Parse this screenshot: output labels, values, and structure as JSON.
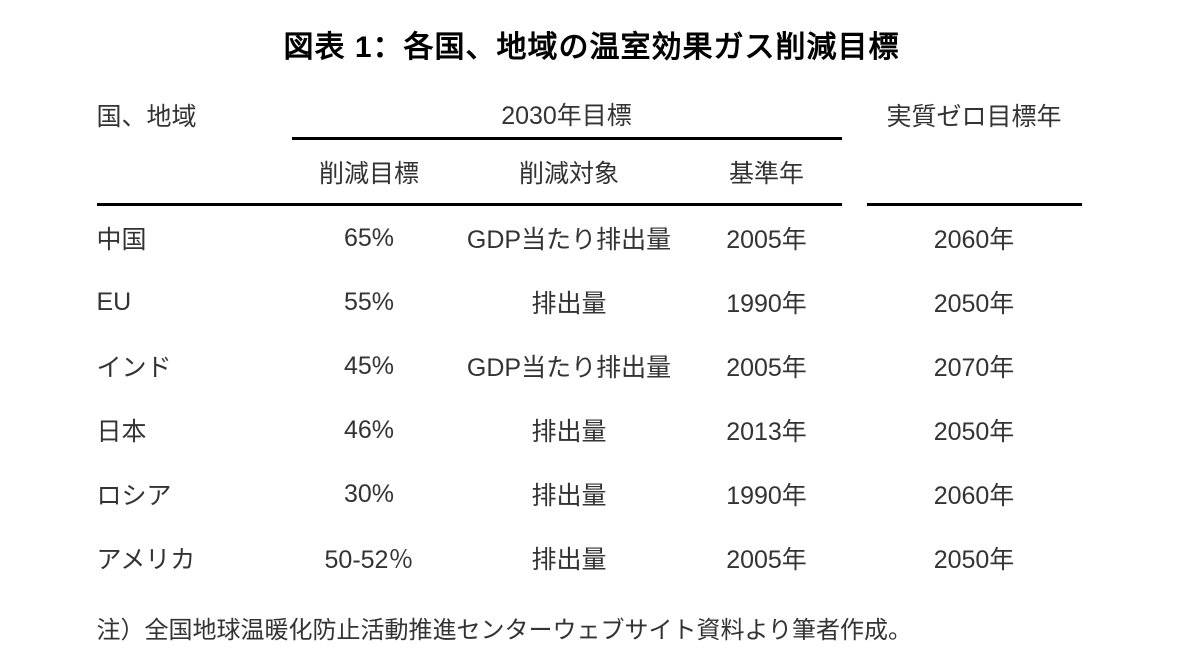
{
  "title": "図表 1：各国、地域の温室効果ガス削減目標",
  "table": {
    "header": {
      "region": "国、地域",
      "target_2030": "2030年目標",
      "net_zero": "実質ゼロ目標年"
    },
    "subheader": {
      "reduction_target": "削減目標",
      "reduction_scope": "削減対象",
      "base_year": "基準年"
    },
    "rows": [
      {
        "region": "中国",
        "target": "65%",
        "scope": "GDP当たり排出量",
        "base_year": "2005年",
        "net_zero_year": "2060年"
      },
      {
        "region": "EU",
        "target": "55%",
        "scope": "排出量",
        "base_year": "1990年",
        "net_zero_year": "2050年"
      },
      {
        "region": "インド",
        "target": "45%",
        "scope": "GDP当たり排出量",
        "base_year": "2005年",
        "net_zero_year": "2070年"
      },
      {
        "region": "日本",
        "target": "46%",
        "scope": "排出量",
        "base_year": "2013年",
        "net_zero_year": "2050年"
      },
      {
        "region": "ロシア",
        "target": "30%",
        "scope": "排出量",
        "base_year": "1990年",
        "net_zero_year": "2060年"
      },
      {
        "region": "アメリカ",
        "target": "50-52％",
        "scope": "排出量",
        "base_year": "2005年",
        "net_zero_year": "2050年"
      }
    ]
  },
  "note": "注）全国地球温暖化防止活動推進センターウェブサイト資料より筆者作成。"
}
